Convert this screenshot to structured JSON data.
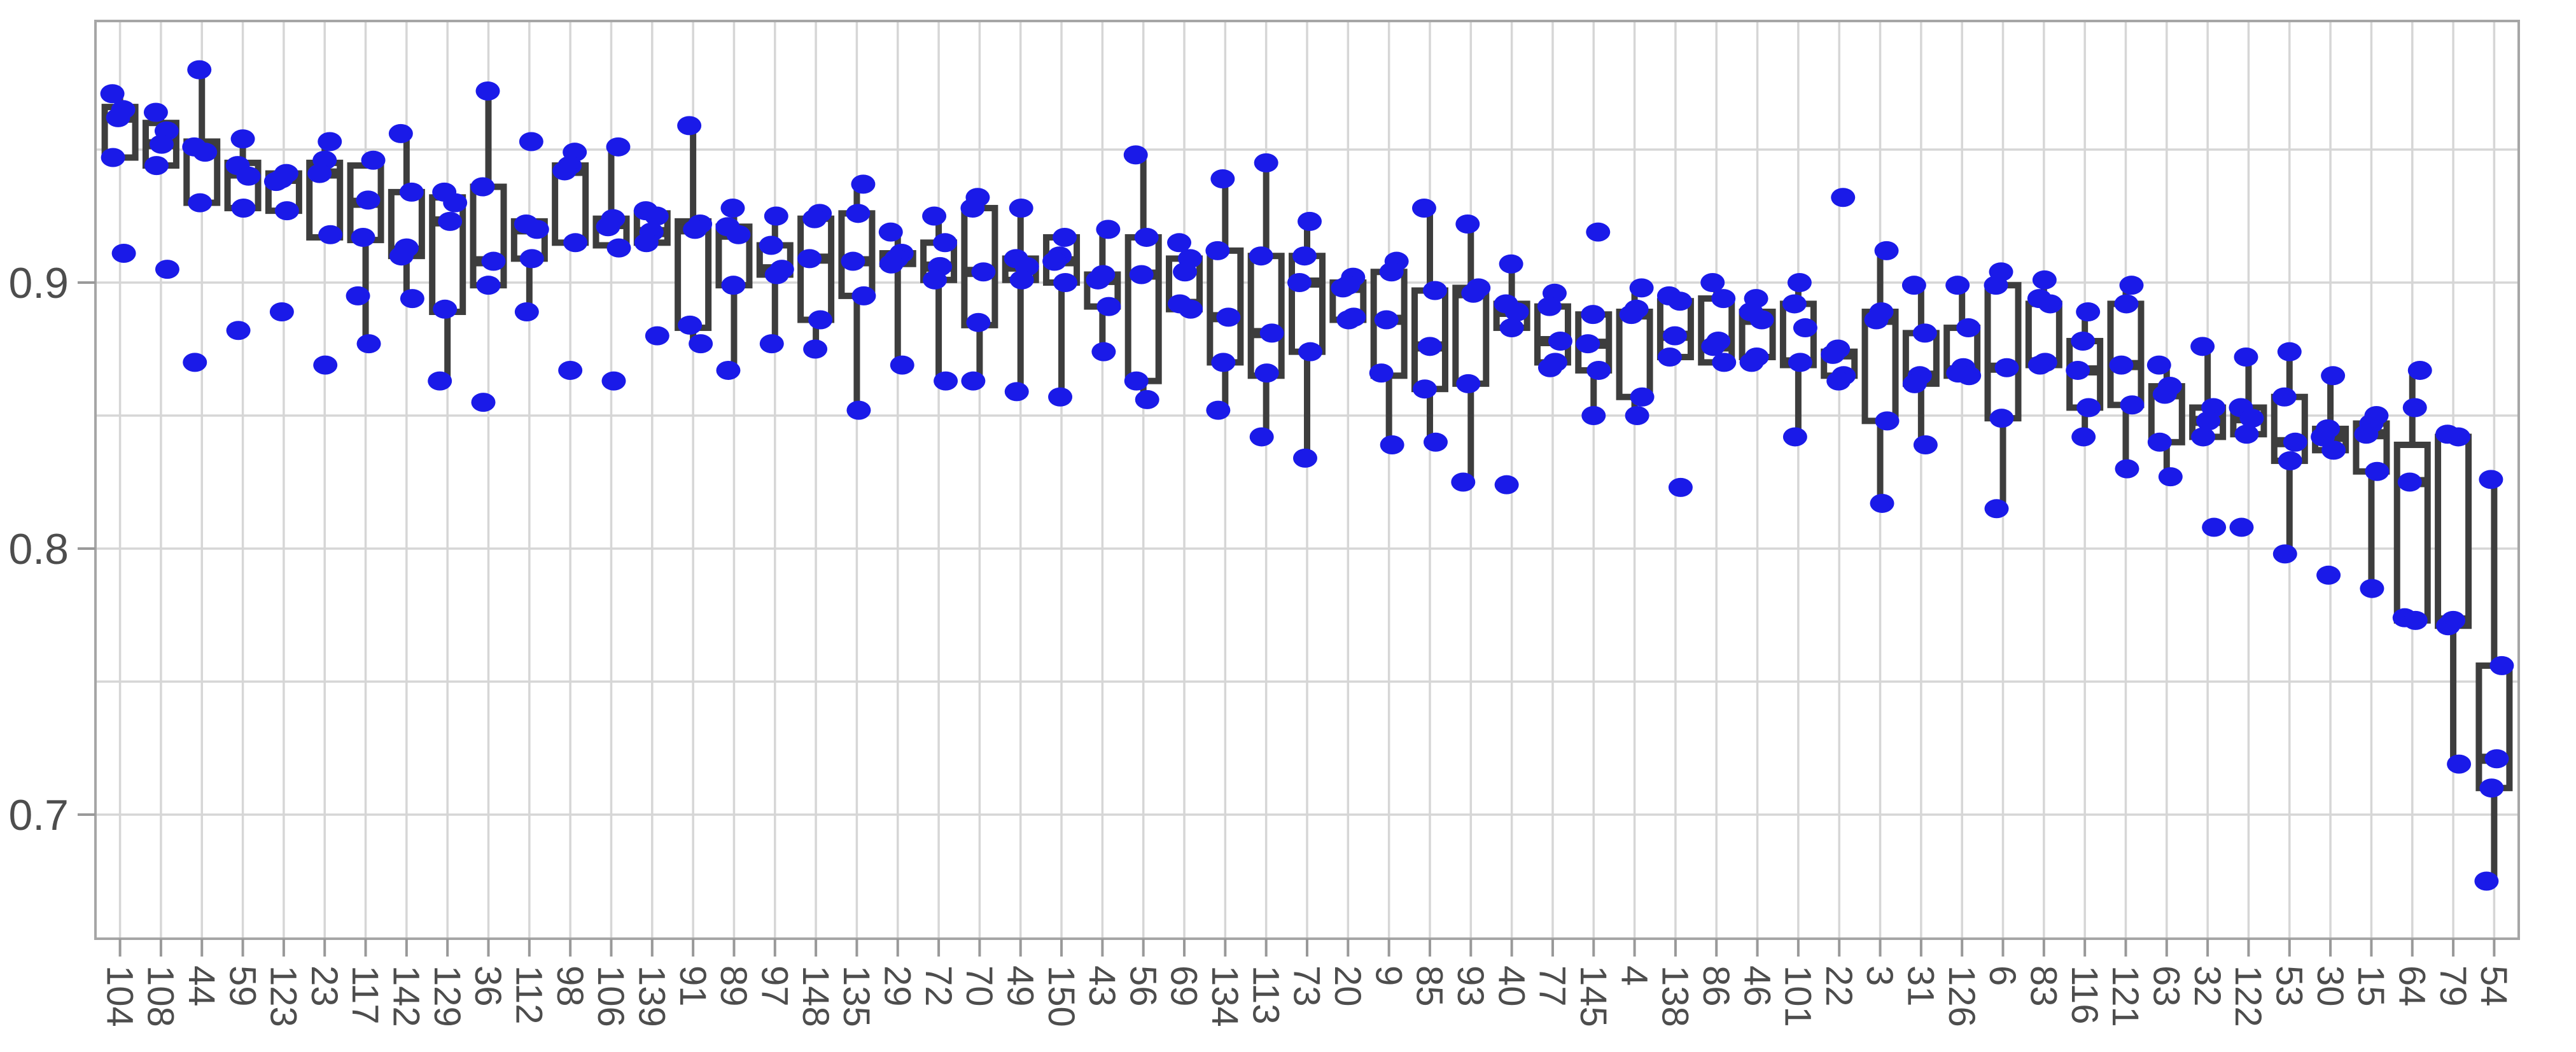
{
  "chart_data": {
    "type": "boxplot",
    "title": "",
    "xlabel": "",
    "ylabel": "",
    "legend": "none",
    "grid": "on",
    "ylim": [
      0.652,
      0.998
    ],
    "y_ticks": [
      {
        "value": 0.9,
        "label": "0.9"
      },
      {
        "value": 0.8,
        "label": "0.8"
      },
      {
        "value": 0.7,
        "label": "0.7"
      }
    ],
    "y_gridlines": [
      0.95,
      0.9,
      0.85,
      0.8,
      0.75,
      0.7
    ],
    "colors": {
      "box_stroke": "#3d3d3d",
      "box_fill": "#ffffff",
      "point": "#1a1ae8",
      "gridline": "#d6d6d6",
      "panel_border": "#a6a6a6",
      "tick": "#999999",
      "tick_label": "#4d4d4d"
    },
    "categories": [
      "104",
      "108",
      "44",
      "59",
      "123",
      "23",
      "117",
      "142",
      "129",
      "36",
      "112",
      "98",
      "106",
      "139",
      "91",
      "89",
      "97",
      "148",
      "135",
      "29",
      "72",
      "70",
      "49",
      "150",
      "43",
      "56",
      "69",
      "134",
      "113",
      "73",
      "20",
      "9",
      "85",
      "93",
      "40",
      "77",
      "145",
      "4",
      "138",
      "86",
      "46",
      "101",
      "22",
      "3",
      "31",
      "126",
      "6",
      "83",
      "116",
      "121",
      "63",
      "32",
      "122",
      "53",
      "30",
      "15",
      "64",
      "79",
      "54"
    ],
    "boxes": [
      {
        "label": "104",
        "q1": 0.947,
        "median": 0.962,
        "q3": 0.966,
        "lo": 0.946,
        "hi": 0.97,
        "points": [
          0.971,
          0.965,
          0.962,
          0.947,
          0.911
        ]
      },
      {
        "label": "108",
        "q1": 0.944,
        "median": 0.952,
        "q3": 0.96,
        "lo": 0.944,
        "hi": 0.964,
        "points": [
          0.964,
          0.957,
          0.952,
          0.944,
          0.905
        ]
      },
      {
        "label": "44",
        "q1": 0.93,
        "median": 0.95,
        "q3": 0.953,
        "lo": 0.93,
        "hi": 0.98,
        "points": [
          0.98,
          0.951,
          0.949,
          0.93,
          0.87
        ]
      },
      {
        "label": "59",
        "q1": 0.928,
        "median": 0.941,
        "q3": 0.945,
        "lo": 0.928,
        "hi": 0.954,
        "points": [
          0.954,
          0.944,
          0.94,
          0.928,
          0.882
        ]
      },
      {
        "label": "123",
        "q1": 0.927,
        "median": 0.939,
        "q3": 0.941,
        "lo": 0.927,
        "hi": 0.941,
        "points": [
          0.941,
          0.939,
          0.938,
          0.927,
          0.889
        ]
      },
      {
        "label": "23",
        "q1": 0.917,
        "median": 0.941,
        "q3": 0.945,
        "lo": 0.917,
        "hi": 0.953,
        "points": [
          0.953,
          0.946,
          0.941,
          0.918,
          0.869
        ]
      },
      {
        "label": "117",
        "q1": 0.916,
        "median": 0.93,
        "q3": 0.944,
        "lo": 0.877,
        "hi": 0.944,
        "points": [
          0.946,
          0.931,
          0.917,
          0.895,
          0.877
        ]
      },
      {
        "label": "142",
        "q1": 0.91,
        "median": 0.912,
        "q3": 0.934,
        "lo": 0.894,
        "hi": 0.956,
        "points": [
          0.956,
          0.934,
          0.913,
          0.91,
          0.894
        ]
      },
      {
        "label": "129",
        "q1": 0.889,
        "median": 0.923,
        "q3": 0.932,
        "lo": 0.863,
        "hi": 0.932,
        "points": [
          0.934,
          0.93,
          0.923,
          0.89,
          0.863
        ]
      },
      {
        "label": "36",
        "q1": 0.899,
        "median": 0.908,
        "q3": 0.936,
        "lo": 0.899,
        "hi": 0.972,
        "points": [
          0.972,
          0.936,
          0.908,
          0.899,
          0.855
        ]
      },
      {
        "label": "112",
        "q1": 0.909,
        "median": 0.92,
        "q3": 0.923,
        "lo": 0.889,
        "hi": 0.923,
        "points": [
          0.953,
          0.922,
          0.92,
          0.909,
          0.889
        ]
      },
      {
        "label": "98",
        "q1": 0.915,
        "median": 0.942,
        "q3": 0.944,
        "lo": 0.915,
        "hi": 0.944,
        "points": [
          0.949,
          0.944,
          0.942,
          0.915,
          0.867
        ]
      },
      {
        "label": "106",
        "q1": 0.914,
        "median": 0.922,
        "q3": 0.924,
        "lo": 0.914,
        "hi": 0.951,
        "points": [
          0.951,
          0.924,
          0.921,
          0.913,
          0.863
        ]
      },
      {
        "label": "139",
        "q1": 0.915,
        "median": 0.919,
        "q3": 0.926,
        "lo": 0.915,
        "hi": 0.927,
        "points": [
          0.927,
          0.925,
          0.919,
          0.915,
          0.88
        ]
      },
      {
        "label": "91",
        "q1": 0.883,
        "median": 0.92,
        "q3": 0.923,
        "lo": 0.877,
        "hi": 0.959,
        "points": [
          0.959,
          0.922,
          0.92,
          0.884,
          0.877
        ]
      },
      {
        "label": "89",
        "q1": 0.899,
        "median": 0.918,
        "q3": 0.921,
        "lo": 0.867,
        "hi": 0.928,
        "points": [
          0.928,
          0.921,
          0.918,
          0.899,
          0.867
        ]
      },
      {
        "label": "97",
        "q1": 0.903,
        "median": 0.905,
        "q3": 0.914,
        "lo": 0.877,
        "hi": 0.925,
        "points": [
          0.925,
          0.914,
          0.905,
          0.903,
          0.877
        ]
      },
      {
        "label": "148",
        "q1": 0.886,
        "median": 0.909,
        "q3": 0.924,
        "lo": 0.875,
        "hi": 0.926,
        "points": [
          0.926,
          0.924,
          0.909,
          0.886,
          0.875
        ]
      },
      {
        "label": "135",
        "q1": 0.895,
        "median": 0.908,
        "q3": 0.926,
        "lo": 0.852,
        "hi": 0.937,
        "points": [
          0.937,
          0.926,
          0.908,
          0.895,
          0.852
        ]
      },
      {
        "label": "29",
        "q1": 0.907,
        "median": 0.909,
        "q3": 0.911,
        "lo": 0.869,
        "hi": 0.919,
        "points": [
          0.919,
          0.911,
          0.909,
          0.907,
          0.869
        ]
      },
      {
        "label": "72",
        "q1": 0.901,
        "median": 0.906,
        "q3": 0.915,
        "lo": 0.863,
        "hi": 0.925,
        "points": [
          0.925,
          0.915,
          0.906,
          0.901,
          0.863
        ]
      },
      {
        "label": "70",
        "q1": 0.884,
        "median": 0.904,
        "q3": 0.928,
        "lo": 0.863,
        "hi": 0.932,
        "points": [
          0.932,
          0.928,
          0.904,
          0.885,
          0.863
        ]
      },
      {
        "label": "49",
        "q1": 0.901,
        "median": 0.906,
        "q3": 0.909,
        "lo": 0.859,
        "hi": 0.928,
        "points": [
          0.928,
          0.909,
          0.906,
          0.901,
          0.859
        ]
      },
      {
        "label": "150",
        "q1": 0.9,
        "median": 0.908,
        "q3": 0.917,
        "lo": 0.857,
        "hi": 0.917,
        "points": [
          0.917,
          0.91,
          0.908,
          0.9,
          0.857
        ]
      },
      {
        "label": "43",
        "q1": 0.891,
        "median": 0.901,
        "q3": 0.903,
        "lo": 0.874,
        "hi": 0.92,
        "points": [
          0.92,
          0.903,
          0.901,
          0.891,
          0.874
        ]
      },
      {
        "label": "56",
        "q1": 0.863,
        "median": 0.903,
        "q3": 0.917,
        "lo": 0.856,
        "hi": 0.948,
        "points": [
          0.948,
          0.917,
          0.903,
          0.863,
          0.856
        ]
      },
      {
        "label": "69",
        "q1": 0.89,
        "median": 0.892,
        "q3": 0.909,
        "lo": 0.89,
        "hi": 0.915,
        "points": [
          0.915,
          0.909,
          0.904,
          0.892,
          0.89
        ]
      },
      {
        "label": "134",
        "q1": 0.87,
        "median": 0.887,
        "q3": 0.912,
        "lo": 0.852,
        "hi": 0.939,
        "points": [
          0.939,
          0.912,
          0.887,
          0.87,
          0.852
        ]
      },
      {
        "label": "113",
        "q1": 0.865,
        "median": 0.881,
        "q3": 0.91,
        "lo": 0.842,
        "hi": 0.945,
        "points": [
          0.945,
          0.91,
          0.881,
          0.866,
          0.842
        ]
      },
      {
        "label": "73",
        "q1": 0.874,
        "median": 0.9,
        "q3": 0.91,
        "lo": 0.834,
        "hi": 0.923,
        "points": [
          0.923,
          0.91,
          0.9,
          0.874,
          0.834
        ]
      },
      {
        "label": "20",
        "q1": 0.886,
        "median": 0.898,
        "q3": 0.9,
        "lo": 0.886,
        "hi": 0.902,
        "points": [
          0.902,
          0.899,
          0.898,
          0.887,
          0.886
        ]
      },
      {
        "label": "9",
        "q1": 0.865,
        "median": 0.886,
        "q3": 0.904,
        "lo": 0.839,
        "hi": 0.908,
        "points": [
          0.908,
          0.904,
          0.886,
          0.866,
          0.839
        ]
      },
      {
        "label": "85",
        "q1": 0.86,
        "median": 0.876,
        "q3": 0.897,
        "lo": 0.84,
        "hi": 0.928,
        "points": [
          0.928,
          0.897,
          0.876,
          0.86,
          0.84
        ]
      },
      {
        "label": "93",
        "q1": 0.862,
        "median": 0.896,
        "q3": 0.898,
        "lo": 0.825,
        "hi": 0.922,
        "points": [
          0.922,
          0.898,
          0.896,
          0.862,
          0.825
        ]
      },
      {
        "label": "40",
        "q1": 0.883,
        "median": 0.889,
        "q3": 0.892,
        "lo": 0.883,
        "hi": 0.907,
        "points": [
          0.907,
          0.892,
          0.889,
          0.883,
          0.824
        ]
      },
      {
        "label": "77",
        "q1": 0.87,
        "median": 0.878,
        "q3": 0.891,
        "lo": 0.868,
        "hi": 0.896,
        "points": [
          0.896,
          0.891,
          0.878,
          0.87,
          0.868
        ]
      },
      {
        "label": "145",
        "q1": 0.867,
        "median": 0.877,
        "q3": 0.888,
        "lo": 0.85,
        "hi": 0.888,
        "points": [
          0.919,
          0.888,
          0.877,
          0.867,
          0.85
        ]
      },
      {
        "label": "4",
        "q1": 0.857,
        "median": 0.888,
        "q3": 0.889,
        "lo": 0.85,
        "hi": 0.898,
        "points": [
          0.898,
          0.89,
          0.888,
          0.857,
          0.85
        ]
      },
      {
        "label": "138",
        "q1": 0.872,
        "median": 0.88,
        "q3": 0.893,
        "lo": 0.872,
        "hi": 0.895,
        "points": [
          0.895,
          0.893,
          0.88,
          0.872,
          0.823
        ]
      },
      {
        "label": "86",
        "q1": 0.87,
        "median": 0.876,
        "q3": 0.894,
        "lo": 0.87,
        "hi": 0.9,
        "points": [
          0.9,
          0.894,
          0.878,
          0.876,
          0.87
        ]
      },
      {
        "label": "46",
        "q1": 0.872,
        "median": 0.886,
        "q3": 0.889,
        "lo": 0.87,
        "hi": 0.894,
        "points": [
          0.894,
          0.889,
          0.886,
          0.872,
          0.87
        ]
      },
      {
        "label": "101",
        "q1": 0.869,
        "median": 0.87,
        "q3": 0.892,
        "lo": 0.842,
        "hi": 0.9,
        "points": [
          0.9,
          0.892,
          0.883,
          0.87,
          0.842
        ]
      },
      {
        "label": "22",
        "q1": 0.865,
        "median": 0.873,
        "q3": 0.874,
        "lo": 0.863,
        "hi": 0.874,
        "points": [
          0.932,
          0.875,
          0.873,
          0.865,
          0.863
        ]
      },
      {
        "label": "3",
        "q1": 0.848,
        "median": 0.886,
        "q3": 0.889,
        "lo": 0.817,
        "hi": 0.912,
        "points": [
          0.912,
          0.889,
          0.886,
          0.848,
          0.817
        ]
      },
      {
        "label": "31",
        "q1": 0.862,
        "median": 0.865,
        "q3": 0.881,
        "lo": 0.839,
        "hi": 0.899,
        "points": [
          0.899,
          0.881,
          0.865,
          0.862,
          0.839
        ]
      },
      {
        "label": "126",
        "q1": 0.865,
        "median": 0.867,
        "q3": 0.883,
        "lo": 0.865,
        "hi": 0.899,
        "points": [
          0.899,
          0.883,
          0.868,
          0.866,
          0.865
        ]
      },
      {
        "label": "6",
        "q1": 0.849,
        "median": 0.868,
        "q3": 0.899,
        "lo": 0.815,
        "hi": 0.904,
        "points": [
          0.904,
          0.899,
          0.868,
          0.849,
          0.815
        ]
      },
      {
        "label": "83",
        "q1": 0.869,
        "median": 0.87,
        "q3": 0.892,
        "lo": 0.869,
        "hi": 0.901,
        "points": [
          0.901,
          0.894,
          0.892,
          0.87,
          0.869
        ]
      },
      {
        "label": "116",
        "q1": 0.853,
        "median": 0.867,
        "q3": 0.878,
        "lo": 0.842,
        "hi": 0.889,
        "points": [
          0.889,
          0.878,
          0.867,
          0.853,
          0.842
        ]
      },
      {
        "label": "121",
        "q1": 0.854,
        "median": 0.869,
        "q3": 0.892,
        "lo": 0.83,
        "hi": 0.899,
        "points": [
          0.899,
          0.892,
          0.869,
          0.854,
          0.83
        ]
      },
      {
        "label": "63",
        "q1": 0.84,
        "median": 0.858,
        "q3": 0.861,
        "lo": 0.827,
        "hi": 0.869,
        "points": [
          0.869,
          0.861,
          0.858,
          0.84,
          0.827
        ]
      },
      {
        "label": "32",
        "q1": 0.842,
        "median": 0.848,
        "q3": 0.853,
        "lo": 0.842,
        "hi": 0.876,
        "points": [
          0.876,
          0.853,
          0.848,
          0.842,
          0.808
        ]
      },
      {
        "label": "122",
        "q1": 0.843,
        "median": 0.849,
        "q3": 0.853,
        "lo": 0.843,
        "hi": 0.872,
        "points": [
          0.872,
          0.853,
          0.849,
          0.843,
          0.808
        ]
      },
      {
        "label": "53",
        "q1": 0.833,
        "median": 0.84,
        "q3": 0.857,
        "lo": 0.798,
        "hi": 0.874,
        "points": [
          0.874,
          0.857,
          0.84,
          0.833,
          0.798
        ]
      },
      {
        "label": "30",
        "q1": 0.837,
        "median": 0.842,
        "q3": 0.845,
        "lo": 0.837,
        "hi": 0.865,
        "points": [
          0.865,
          0.845,
          0.842,
          0.837,
          0.79
        ]
      },
      {
        "label": "15",
        "q1": 0.829,
        "median": 0.843,
        "q3": 0.847,
        "lo": 0.785,
        "hi": 0.85,
        "points": [
          0.85,
          0.847,
          0.843,
          0.829,
          0.785
        ]
      },
      {
        "label": "64",
        "q1": 0.773,
        "median": 0.825,
        "q3": 0.839,
        "lo": 0.773,
        "hi": 0.867,
        "points": [
          0.867,
          0.853,
          0.825,
          0.774,
          0.773
        ]
      },
      {
        "label": "79",
        "q1": 0.771,
        "median": 0.773,
        "q3": 0.842,
        "lo": 0.719,
        "hi": 0.843,
        "points": [
          0.843,
          0.842,
          0.773,
          0.771,
          0.719
        ]
      },
      {
        "label": "54",
        "q1": 0.71,
        "median": 0.721,
        "q3": 0.756,
        "lo": 0.675,
        "hi": 0.826,
        "points": [
          0.826,
          0.756,
          0.721,
          0.71,
          0.675
        ]
      }
    ]
  }
}
